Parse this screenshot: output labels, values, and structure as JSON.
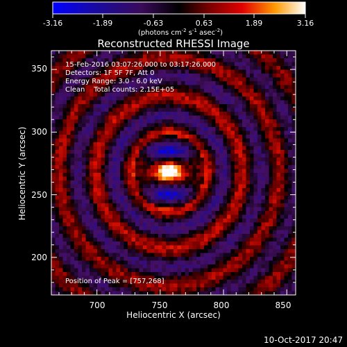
{
  "colorbar": {
    "tick_labels": [
      "-3.16",
      "-1.89",
      "-0.63",
      "0.63",
      "1.89",
      "3.16"
    ],
    "unit_label": "(photons cm",
    "unit_exp1": "-2",
    "unit_mid1": " s",
    "unit_exp2": "-1",
    "unit_mid2": " asec",
    "unit_exp3": "-2",
    "unit_end": ")"
  },
  "plot": {
    "title": "Reconstructed RHESSI Image",
    "xlabel": "Heliocentric X (arcsec)",
    "ylabel": "Heliocentric Y (arcsec)",
    "x_ticks": [
      "700",
      "750",
      "800",
      "850"
    ],
    "y_ticks": [
      "200",
      "250",
      "300",
      "350"
    ],
    "xlim": [
      664,
      857
    ],
    "ylim": [
      170,
      365
    ],
    "peak": [
      757,
      268
    ]
  },
  "annotations": {
    "time_range": "15-Feb-2016 03:07:26.000 to 03:17:26.000",
    "detectors": "Detectors: 1F 5F 7F, Att 0",
    "energy": "Energy Range: 3.0 - 6.0 keV",
    "clean": "Clean    Total counts: 2.15E+05",
    "peak_position": "Position of Peak = [757,268]"
  },
  "footer": {
    "timestamp": "10-Oct-2017 20:47"
  }
}
